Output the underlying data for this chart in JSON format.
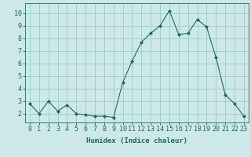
{
  "x": [
    0,
    1,
    2,
    3,
    4,
    5,
    6,
    7,
    8,
    9,
    10,
    11,
    12,
    13,
    14,
    15,
    16,
    17,
    18,
    19,
    20,
    21,
    22,
    23
  ],
  "y": [
    2.8,
    2.0,
    3.0,
    2.2,
    2.7,
    2.0,
    1.9,
    1.8,
    1.8,
    1.7,
    4.5,
    6.2,
    7.7,
    8.4,
    9.0,
    10.2,
    8.3,
    8.4,
    9.5,
    8.9,
    6.5,
    3.5,
    2.8,
    1.8
  ],
  "line_color": "#1a6b5a",
  "marker": "D",
  "marker_size": 2.0,
  "bg_color": "#cce8e8",
  "grid_color": "#99cccc",
  "xlabel": "Humidex (Indice chaleur)",
  "xlim": [
    -0.5,
    23.5
  ],
  "ylim": [
    1.3,
    10.8
  ],
  "yticks": [
    2,
    3,
    4,
    5,
    6,
    7,
    8,
    9,
    10
  ],
  "xticks": [
    0,
    1,
    2,
    3,
    4,
    5,
    6,
    7,
    8,
    9,
    10,
    11,
    12,
    13,
    14,
    15,
    16,
    17,
    18,
    19,
    20,
    21,
    22,
    23
  ],
  "xlabel_fontsize": 6.5,
  "tick_fontsize": 6.0,
  "axis_color": "#1a6b5a"
}
